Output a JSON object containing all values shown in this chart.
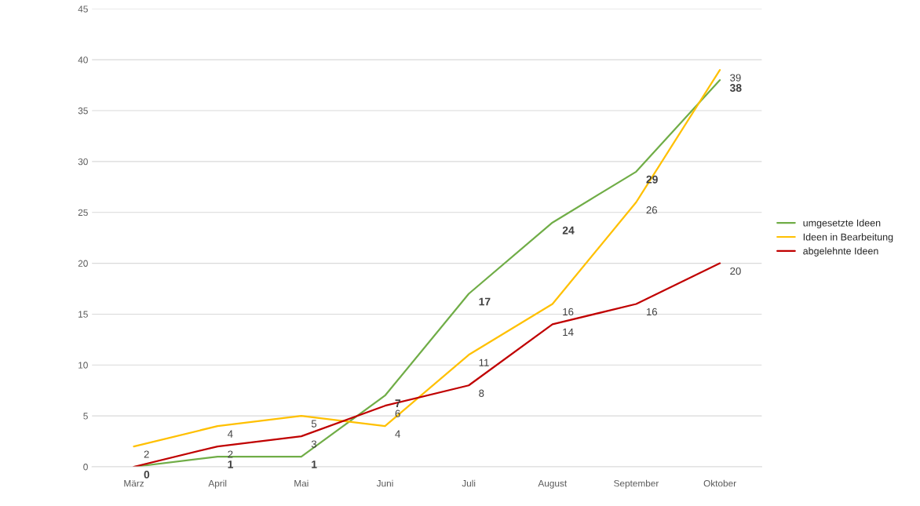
{
  "chart_data": {
    "type": "line",
    "categories": [
      "März",
      "April",
      "Mai",
      "Juni",
      "Juli",
      "August",
      "September",
      "Oktober"
    ],
    "series": [
      {
        "name": "umgesetzte Ideen",
        "color": "#70ad47",
        "values": [
          0,
          1,
          1,
          7,
          17,
          24,
          29,
          38
        ]
      },
      {
        "name": "Ideen in Bearbeitung",
        "color": "#ffc000",
        "values": [
          2,
          4,
          5,
          4,
          11,
          16,
          26,
          39
        ]
      },
      {
        "name": "abgelehnte Ideen",
        "color": "#c00000",
        "values": [
          0,
          2,
          3,
          6,
          8,
          14,
          16,
          20
        ],
        "value_labels": [
          null,
          "2",
          "3",
          "6",
          "8",
          "14",
          "16",
          "20"
        ]
      }
    ],
    "ylim": [
      0,
      45
    ],
    "yticks": [
      0,
      5,
      10,
      15,
      20,
      25,
      30,
      35,
      40,
      45
    ],
    "grid": "y",
    "legend": "right",
    "data_labels": true,
    "marker": "none",
    "line_style": "solid"
  }
}
